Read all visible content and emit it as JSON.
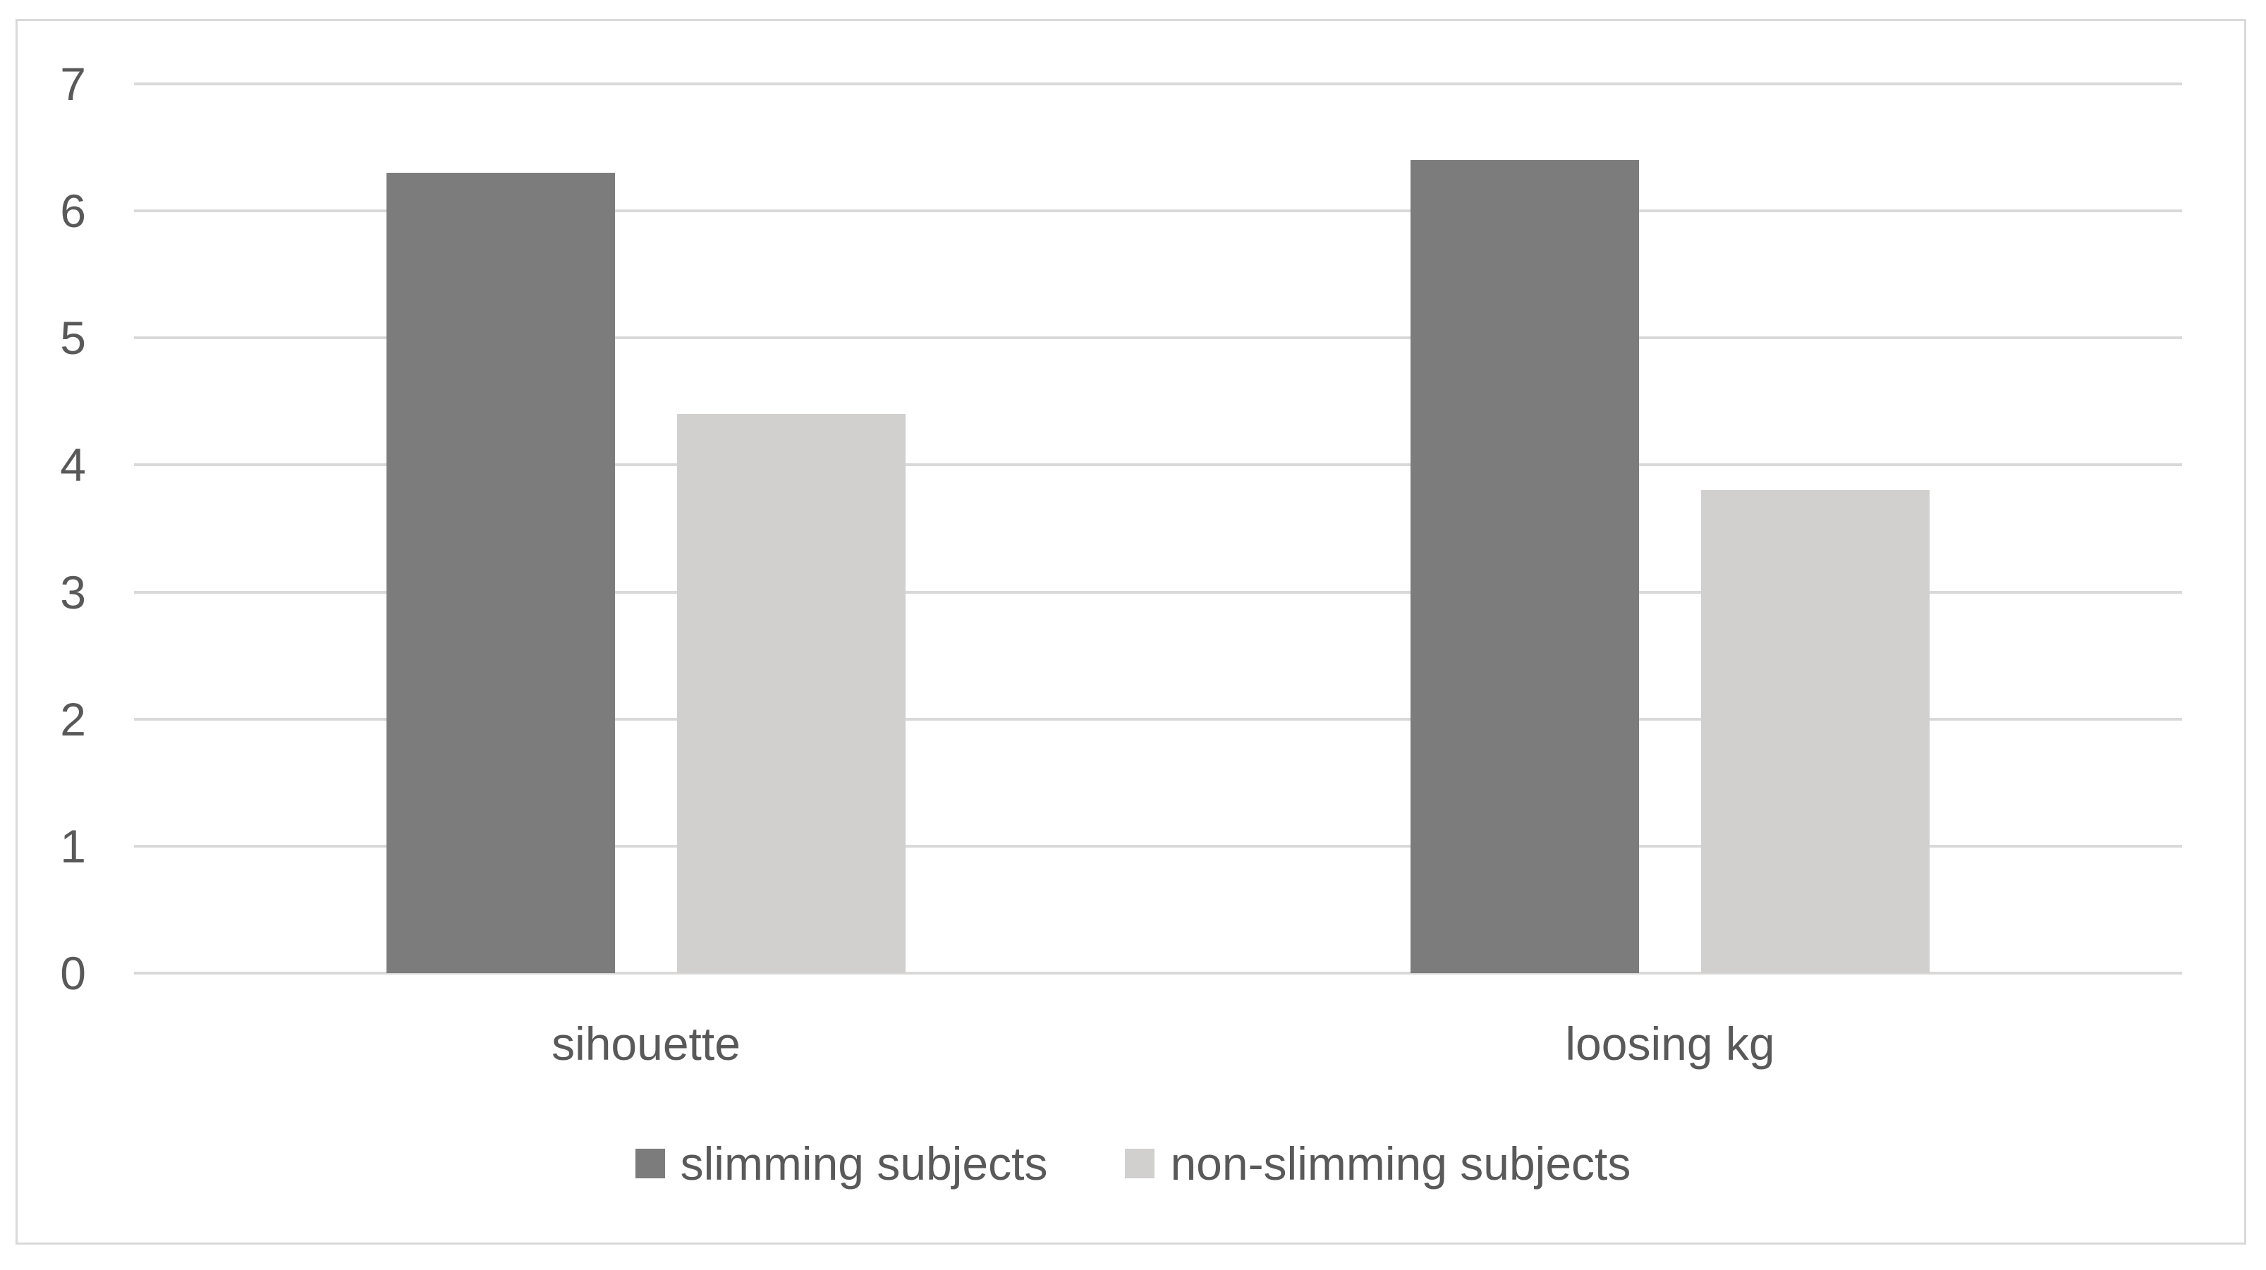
{
  "chart_data": {
    "type": "bar",
    "categories": [
      "sihouette",
      "loosing kg"
    ],
    "series": [
      {
        "name": "slimming subjects",
        "color": "#7c7c7c",
        "values": [
          6.3,
          6.4
        ]
      },
      {
        "name": "non-slimming subjects",
        "color": "#d1d0ce",
        "values": [
          4.4,
          3.8
        ]
      }
    ],
    "title": "",
    "xlabel": "",
    "ylabel": "",
    "ylim": [
      0,
      7
    ],
    "yticks": [
      0,
      1,
      2,
      3,
      4,
      5,
      6,
      7
    ],
    "grid": true,
    "legend_position": "bottom"
  },
  "colors": {
    "background": "#ffffff",
    "frame_border": "#d9d9d9",
    "gridline": "#d9d9d9",
    "axis_line": "#d9d9d9",
    "text": "#595959"
  }
}
